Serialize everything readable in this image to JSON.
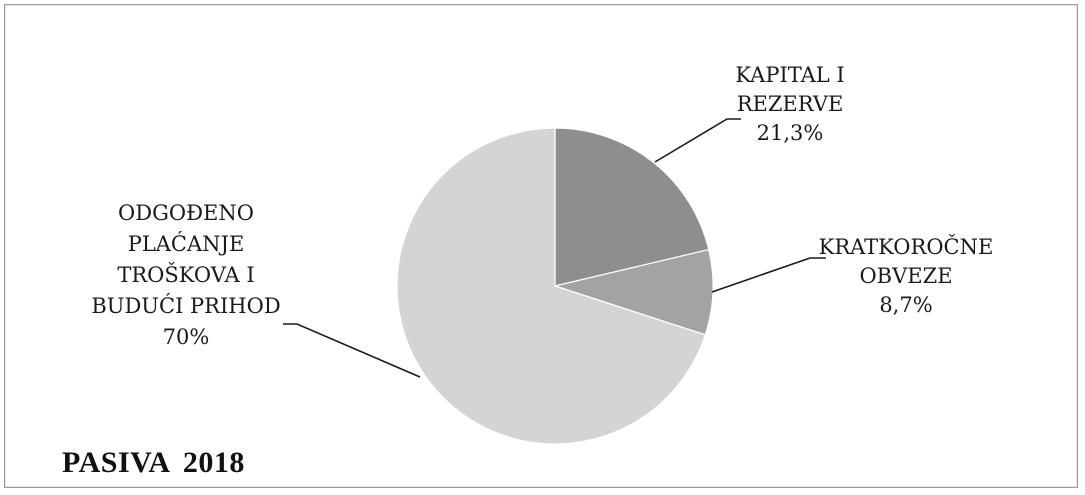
{
  "title": "PASIVA 2018",
  "chart_data": {
    "type": "pie",
    "start": "top",
    "direction": "clockwise",
    "slices": [
      {
        "label_lines": [
          "KAPITAL I",
          "REZERVE",
          "21,3%"
        ],
        "value": 21.3,
        "color": "#8e8e8e"
      },
      {
        "label_lines": [
          "KRATKOROČNE",
          "OBVEZE",
          "8,7%"
        ],
        "value": 8.7,
        "color": "#a3a3a3"
      },
      {
        "label_lines": [
          "ODGOĐENO",
          "PLAĆANJE",
          "TROŠKOVA I",
          "BUDUĆI PRIHOD",
          "70%"
        ],
        "value": 70,
        "color": "#d4d4d4"
      }
    ]
  }
}
